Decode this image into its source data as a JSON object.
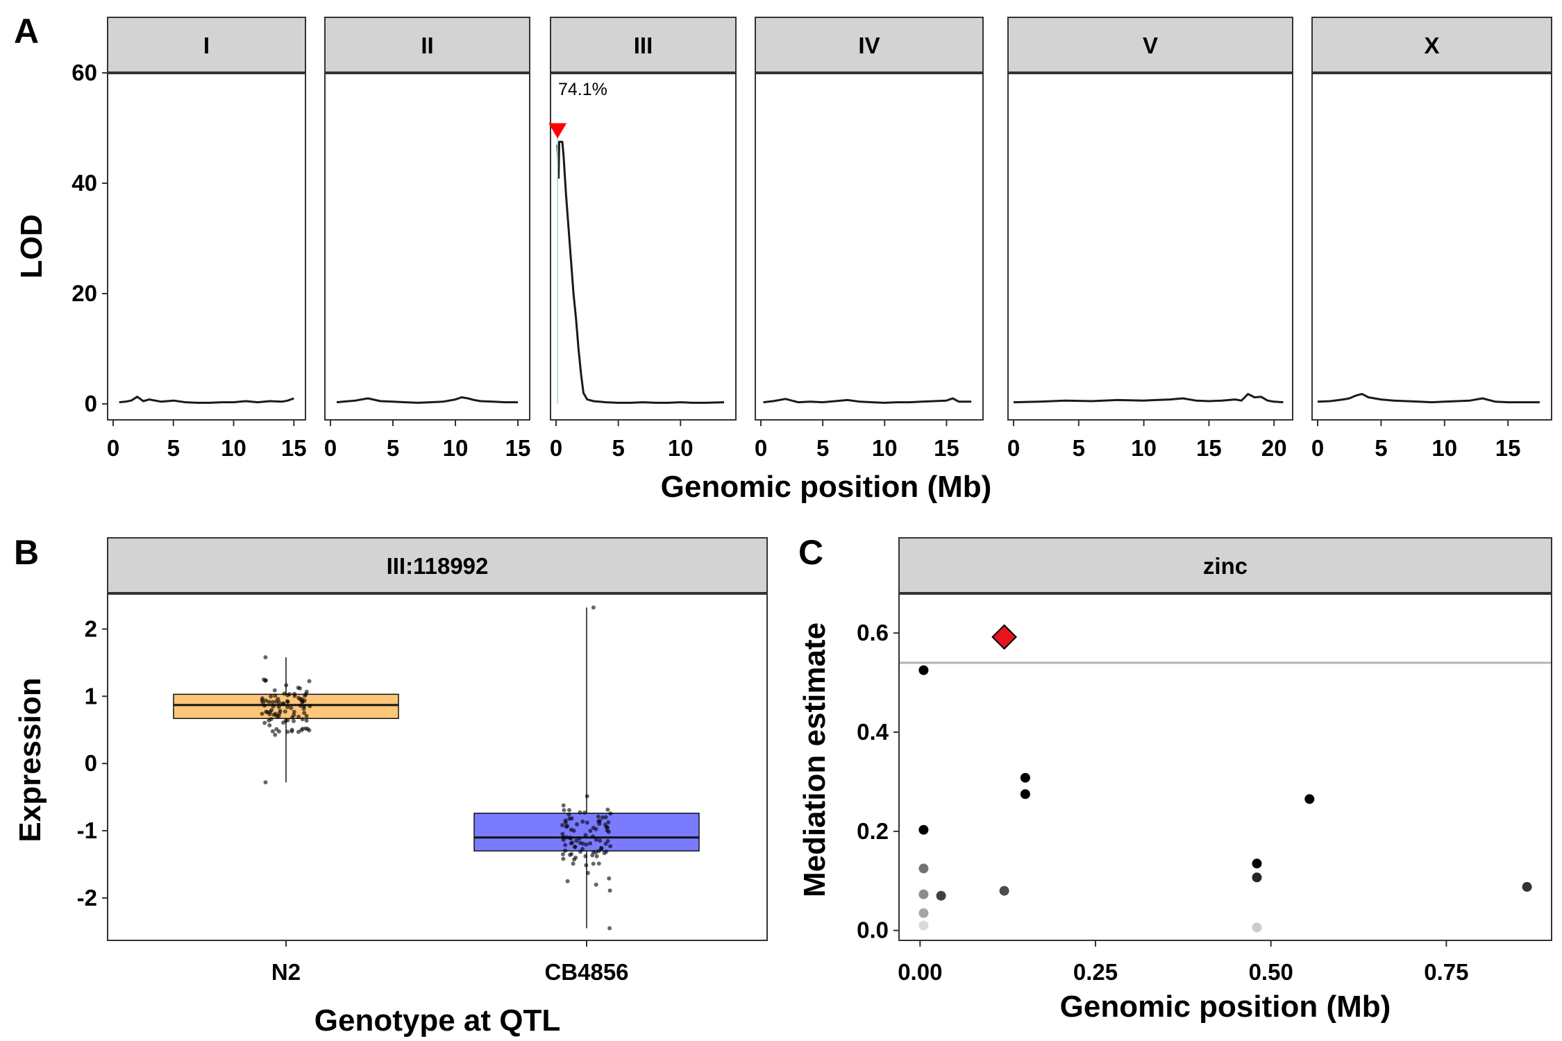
{
  "panels": {
    "A": {
      "letter": "A",
      "xlabel": "Genomic position (Mb)",
      "ylabel": "LOD",
      "annotation": "74.1%"
    },
    "B": {
      "letter": "B",
      "strip": "III:118992",
      "xlabel": "Genotype at QTL",
      "ylabel": "Expression"
    },
    "C": {
      "letter": "C",
      "strip": "zinc",
      "xlabel": "Genomic position (Mb)",
      "ylabel": "Mediation estimate"
    }
  },
  "colors": {
    "strip_fill": "#d3d3d3",
    "line": "#1a1a1a",
    "peak_marker": "#ff0000",
    "n2_box": "#ffc67a",
    "cb_box": "#7b7bff",
    "points": "#000000",
    "threshold": "#b3b3b3"
  },
  "chart_data": [
    {
      "type": "line",
      "title": "",
      "xlabel": "Genomic position (Mb)",
      "ylabel": "LOD",
      "ylim": [
        0,
        60
      ],
      "yticks": [
        0,
        20,
        40,
        60
      ],
      "facets": [
        {
          "name": "I",
          "xlim": [
            0,
            15.5
          ],
          "xticks": [
            0,
            5,
            10,
            15
          ],
          "x": [
            0.5,
            1,
            1.5,
            2,
            2.5,
            3,
            4,
            5,
            6,
            7,
            8,
            9,
            10,
            11,
            12,
            13,
            14,
            14.5,
            15
          ],
          "y": [
            0.3,
            0.4,
            0.6,
            1.3,
            0.5,
            0.8,
            0.4,
            0.6,
            0.3,
            0.2,
            0.2,
            0.3,
            0.3,
            0.5,
            0.3,
            0.5,
            0.4,
            0.6,
            1.0
          ]
        },
        {
          "name": "II",
          "xlim": [
            0,
            15.5
          ],
          "xticks": [
            0,
            5,
            10,
            15
          ],
          "x": [
            0.5,
            1,
            2,
            3,
            4,
            5,
            6,
            7,
            8,
            9,
            10,
            10.5,
            11,
            11.5,
            12,
            13,
            14,
            15
          ],
          "y": [
            0.3,
            0.4,
            0.6,
            1.0,
            0.5,
            0.4,
            0.3,
            0.2,
            0.3,
            0.4,
            0.8,
            1.2,
            1.0,
            0.7,
            0.5,
            0.4,
            0.3,
            0.3
          ]
        },
        {
          "name": "III",
          "xlim": [
            0,
            14
          ],
          "xticks": [
            0,
            5,
            10
          ],
          "x": [
            0.1,
            0.15,
            0.2,
            0.25,
            0.3,
            0.35,
            0.4,
            0.5,
            0.6,
            0.8,
            1.0,
            1.2,
            1.4,
            1.6,
            1.8,
            2.0,
            2.2,
            2.5,
            3,
            4,
            5,
            6,
            7,
            8,
            9,
            10,
            11,
            12,
            13.5
          ],
          "y": [
            47,
            45,
            41,
            47.5,
            47.5,
            47.5,
            47.5,
            47.5,
            45,
            38,
            32,
            26,
            20,
            15.5,
            10,
            5.5,
            2,
            0.8,
            0.5,
            0.3,
            0.2,
            0.2,
            0.3,
            0.2,
            0.2,
            0.3,
            0.2,
            0.2,
            0.3
          ],
          "peak": {
            "x": 0.12,
            "y": 49.5
          }
        },
        {
          "name": "IV",
          "xlim": [
            0,
            17.5
          ],
          "xticks": [
            0,
            5,
            10,
            15
          ],
          "x": [
            0.2,
            1,
            2,
            3,
            4,
            5,
            6,
            7,
            8,
            9,
            10,
            11,
            12,
            13,
            14,
            15,
            15.5,
            16,
            17
          ],
          "y": [
            0.3,
            0.5,
            0.9,
            0.3,
            0.4,
            0.3,
            0.5,
            0.7,
            0.4,
            0.3,
            0.2,
            0.3,
            0.3,
            0.4,
            0.5,
            0.6,
            1.0,
            0.4,
            0.4
          ]
        },
        {
          "name": "V",
          "xlim": [
            0,
            21
          ],
          "xticks": [
            0,
            5,
            10,
            15,
            20
          ],
          "x": [
            0,
            2,
            4,
            6,
            8,
            10,
            12,
            13,
            14,
            15,
            16,
            17,
            17.5,
            18,
            18.5,
            19,
            19.5,
            20,
            20.7
          ],
          "y": [
            0.3,
            0.4,
            0.6,
            0.5,
            0.7,
            0.6,
            0.8,
            1.0,
            0.6,
            0.5,
            0.6,
            0.8,
            0.6,
            1.8,
            1.2,
            1.3,
            0.6,
            0.4,
            0.3
          ]
        },
        {
          "name": "X",
          "xlim": [
            0,
            18
          ],
          "xticks": [
            0,
            5,
            10,
            15
          ],
          "x": [
            0,
            1,
            2,
            2.5,
            3,
            3.5,
            4,
            5,
            6,
            7,
            8,
            9,
            10,
            11,
            12,
            13,
            14,
            15,
            16,
            17.5
          ],
          "y": [
            0.4,
            0.5,
            0.8,
            1.0,
            1.5,
            1.8,
            1.2,
            0.8,
            0.6,
            0.5,
            0.4,
            0.3,
            0.4,
            0.5,
            0.6,
            1.0,
            0.4,
            0.3,
            0.3,
            0.3
          ]
        }
      ]
    },
    {
      "type": "box",
      "title": "III:118992",
      "xlabel": "Genotype at QTL",
      "ylabel": "Expression",
      "categories": [
        "N2",
        "CB4856"
      ],
      "ylim": [
        -2.6,
        2.5
      ],
      "yticks": [
        -2,
        -1,
        0,
        1,
        2
      ],
      "boxes": [
        {
          "name": "N2",
          "min": -0.28,
          "q1": 0.67,
          "median": 0.87,
          "q3": 1.03,
          "max": 1.58
        },
        {
          "name": "CB4856",
          "min": -2.45,
          "q1": -1.3,
          "median": -1.1,
          "q3": -0.74,
          "max": 2.32
        }
      ]
    },
    {
      "type": "scatter",
      "title": "zinc",
      "xlabel": "Genomic position (Mb)",
      "ylabel": "Mediation estimate",
      "xlim": [
        -0.03,
        0.9
      ],
      "ylim": [
        -0.02,
        0.68
      ],
      "xticks": [
        "0.00",
        "0.25",
        "0.50",
        "0.75"
      ],
      "yticks": [
        "0.0",
        "0.2",
        "0.4",
        "0.6"
      ],
      "threshold": 0.54,
      "highlight": {
        "x": 0.12,
        "y": 0.592
      },
      "points": [
        {
          "x": 0.005,
          "y": 0.525,
          "opacity": 1.0
        },
        {
          "x": 0.005,
          "y": 0.203,
          "opacity": 1.0
        },
        {
          "x": 0.005,
          "y": 0.125,
          "opacity": 0.55
        },
        {
          "x": 0.005,
          "y": 0.073,
          "opacity": 0.45
        },
        {
          "x": 0.005,
          "y": 0.035,
          "opacity": 0.35
        },
        {
          "x": 0.005,
          "y": 0.01,
          "opacity": 0.15
        },
        {
          "x": 0.03,
          "y": 0.07,
          "opacity": 0.75
        },
        {
          "x": 0.12,
          "y": 0.08,
          "opacity": 0.7
        },
        {
          "x": 0.15,
          "y": 0.308,
          "opacity": 1.0
        },
        {
          "x": 0.15,
          "y": 0.275,
          "opacity": 1.0
        },
        {
          "x": 0.48,
          "y": 0.135,
          "opacity": 1.0
        },
        {
          "x": 0.48,
          "y": 0.107,
          "opacity": 0.85
        },
        {
          "x": 0.48,
          "y": 0.006,
          "opacity": 0.2
        },
        {
          "x": 0.555,
          "y": 0.265,
          "opacity": 1.0
        },
        {
          "x": 0.865,
          "y": 0.088,
          "opacity": 0.8
        }
      ]
    }
  ]
}
